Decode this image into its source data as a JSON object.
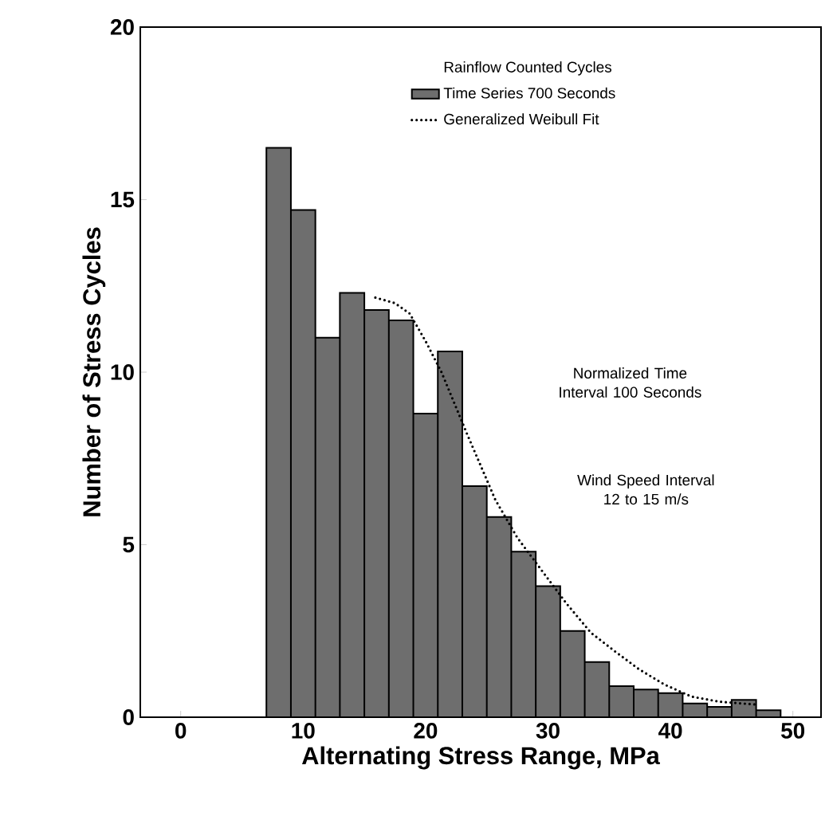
{
  "chart_data": {
    "type": "histogram",
    "xlabel": "Alternating Stress Range, MPa",
    "ylabel": "Number of Stress Cycles",
    "legend_title": "Rainflow Counted Cycles",
    "legend": "top",
    "bins": [
      7,
      9,
      11,
      13,
      15,
      17,
      19,
      21,
      23,
      25,
      27,
      29,
      31,
      33,
      35,
      37,
      39,
      41,
      43,
      45,
      47,
      49
    ],
    "series": [
      {
        "name": "Time Series 700 Seconds",
        "color": "#6e6e6e",
        "values": [
          16.5,
          14.7,
          11.0,
          12.3,
          11.8,
          11.5,
          8.8,
          10.6,
          6.7,
          5.8,
          4.8,
          3.8,
          2.5,
          1.6,
          0.9,
          0.8,
          0.7,
          0.4,
          0.3,
          0.5,
          0.2
        ]
      },
      {
        "name": "Generalized Weibull Fit",
        "type": "line",
        "color": "#000000",
        "line_style": "dotted",
        "x": [
          15.9,
          17.5,
          18.7,
          20.0,
          21.3,
          23.4,
          25.7,
          27.5,
          29.6,
          31.5,
          33.5,
          35.5,
          37.4,
          39.5,
          41.7,
          44.0,
          46.9
        ],
        "values": [
          12.16,
          12.0,
          11.7,
          10.9,
          10.0,
          8.2,
          6.3,
          5.2,
          4.2,
          3.3,
          2.45,
          1.9,
          1.4,
          0.95,
          0.6,
          0.45,
          0.37
        ]
      }
    ],
    "annotations": [
      "Normalized Time Interval 100 Seconds",
      "Wind Speed Interval 12 to 15 m/s"
    ],
    "xlim": [
      -3.3,
      52.3
    ],
    "ylim": [
      0,
      20
    ],
    "xticks": [
      0,
      10,
      20,
      30,
      40,
      50
    ],
    "yticks": [
      0,
      5,
      10,
      15,
      20
    ]
  }
}
